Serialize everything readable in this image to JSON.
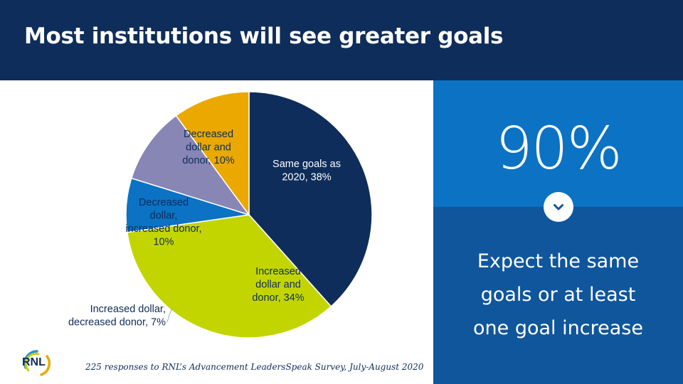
{
  "header": {
    "title": "Most institutions will see greater goals"
  },
  "stat": {
    "value": "90%",
    "caption_lines": [
      "Expect the same",
      "goals or at least",
      "one goal increase"
    ]
  },
  "footnote": "225 responses to RNL’s Advancement LeadersSpeak Survey, July-August 2020",
  "logo": {
    "text": "RNL"
  },
  "colors": {
    "header_bg": "#0e2d5a",
    "panel_top": "#0b72c4",
    "panel_bottom": "#10569d"
  },
  "icons": {
    "down": "chevron-down-icon"
  },
  "chart_data": {
    "type": "pie",
    "start_angle_deg": 0,
    "direction": "clockwise",
    "slices": [
      {
        "label": "Same goals as 2020, 38%",
        "value": 38,
        "color": "#0e2d5a",
        "text_color": "#ffffff"
      },
      {
        "label": "Increased dollar and donor, 34%",
        "value": 34,
        "color": "#c3d500",
        "text_color": "#0e2d5a"
      },
      {
        "label": "Increased dollar, decreased donor, 7%",
        "value": 7,
        "color": "#0b72c4",
        "text_color": "#0e2d5a"
      },
      {
        "label": "Decreased dollar, increased donor, 10%",
        "value": 10,
        "color": "#8886b5",
        "text_color": "#0e2d5a"
      },
      {
        "label": "Decreased dollar and donor, 10%",
        "value": 10,
        "color": "#eba800",
        "text_color": "#0e2d5a"
      }
    ]
  }
}
